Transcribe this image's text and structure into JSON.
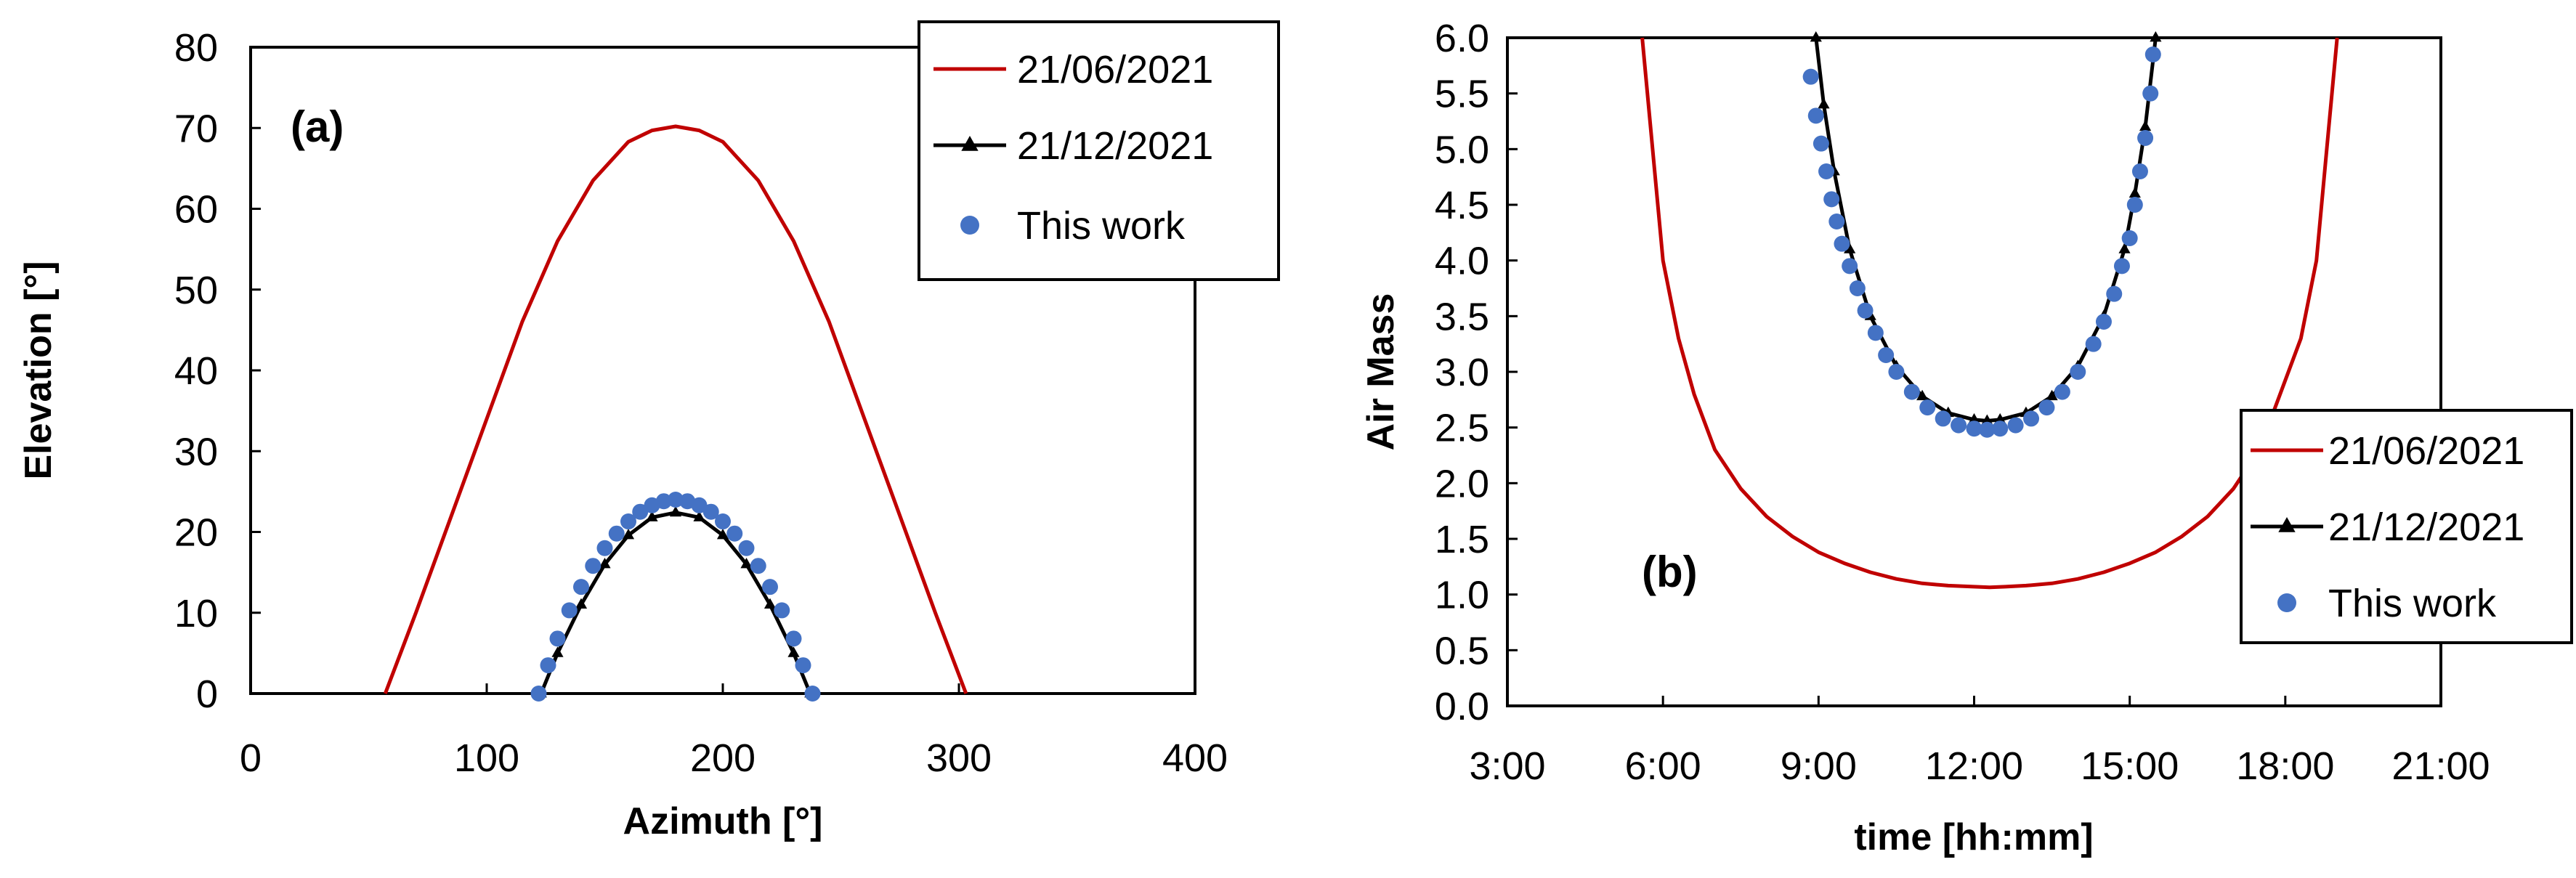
{
  "colors": {
    "june": "#c00000",
    "december": "#000000",
    "this_work": "#4472c4"
  },
  "chart_data": [
    {
      "type": "line",
      "panel_label": "(a)",
      "xlabel": "Azimuth [°]",
      "ylabel": "Elevation [°]",
      "xlim": [
        0,
        400
      ],
      "ylim": [
        0,
        80
      ],
      "x_ticks": [
        "0",
        "100",
        "200",
        "300",
        "400"
      ],
      "y_ticks": [
        "0",
        "10",
        "20",
        "30",
        "40",
        "50",
        "60",
        "70",
        "80"
      ],
      "legend_position": "top-right",
      "series": [
        {
          "name": "21/06/2021",
          "style": "line",
          "color": "#c00000",
          "x": [
            57,
            70,
            85,
            100,
            115,
            130,
            145,
            160,
            170,
            180,
            190,
            200,
            215,
            230,
            245,
            260,
            275,
            290,
            303
          ],
          "y": [
            0,
            10,
            22,
            34,
            46,
            56,
            63.5,
            68.3,
            69.7,
            70.2,
            69.7,
            68.3,
            63.5,
            56,
            46,
            34,
            22,
            10,
            0
          ]
        },
        {
          "name": "21/12/2021",
          "style": "line-triangle",
          "color": "#000000",
          "x": [
            123,
            130,
            140,
            150,
            160,
            170,
            180,
            190,
            200,
            210,
            220,
            230,
            237
          ],
          "y": [
            0,
            5,
            11,
            16,
            19.6,
            21.8,
            22.4,
            21.8,
            19.6,
            16,
            11,
            5,
            0
          ]
        },
        {
          "name": "This work",
          "style": "markers",
          "color": "#4472c4",
          "x": [
            122,
            126,
            130,
            135,
            140,
            145,
            150,
            155,
            160,
            165,
            170,
            175,
            180,
            185,
            190,
            195,
            200,
            205,
            210,
            215,
            220,
            225,
            230,
            234,
            238
          ],
          "y": [
            0,
            3.5,
            6.8,
            10.3,
            13.2,
            15.8,
            18,
            19.8,
            21.3,
            22.5,
            23.3,
            23.8,
            24,
            23.8,
            23.3,
            22.5,
            21.3,
            19.8,
            18,
            15.8,
            13.2,
            10.3,
            6.8,
            3.5,
            0
          ]
        }
      ]
    },
    {
      "type": "line",
      "panel_label": "(b)",
      "xlabel": "time  [hh:mm]",
      "ylabel": "Air Mass",
      "xlim": [
        3,
        21
      ],
      "ylim": [
        0,
        6
      ],
      "x_ticks": [
        "3:00",
        "6:00",
        "9:00",
        "12:00",
        "15:00",
        "18:00",
        "21:00"
      ],
      "y_ticks": [
        "0.0",
        "0.5",
        "1.0",
        "1.5",
        "2.0",
        "2.5",
        "3.0",
        "3.5",
        "4.0",
        "4.5",
        "5.0",
        "5.5",
        "6.0"
      ],
      "legend_position": "right-middle",
      "series": [
        {
          "name": "21/06/2021",
          "style": "line",
          "color": "#c00000",
          "x": [
            5.6,
            5.8,
            6.0,
            6.3,
            6.6,
            7.0,
            7.5,
            8.0,
            8.5,
            9.0,
            9.5,
            10.0,
            10.5,
            11.0,
            11.5,
            12.0,
            12.3,
            12.6,
            13.0,
            13.5,
            14.0,
            14.5,
            15.0,
            15.5,
            16.0,
            16.5,
            17.0,
            17.5,
            17.9,
            18.3,
            18.6,
            18.8,
            19.0
          ],
          "y": [
            6.0,
            5.0,
            4.0,
            3.3,
            2.8,
            2.3,
            1.95,
            1.7,
            1.52,
            1.38,
            1.28,
            1.2,
            1.14,
            1.1,
            1.08,
            1.07,
            1.065,
            1.07,
            1.08,
            1.1,
            1.14,
            1.2,
            1.28,
            1.38,
            1.52,
            1.7,
            1.95,
            2.3,
            2.8,
            3.3,
            4.0,
            5.0,
            6.0
          ]
        },
        {
          "name": "21/12/2021",
          "style": "line-triangle",
          "color": "#000000",
          "x": [
            8.95,
            9.1,
            9.3,
            9.6,
            10.0,
            10.5,
            11.0,
            11.5,
            12.0,
            12.25,
            12.5,
            13.0,
            13.5,
            14.0,
            14.5,
            14.9,
            15.1,
            15.3,
            15.5
          ],
          "y": [
            6.0,
            5.4,
            4.8,
            4.1,
            3.5,
            3.05,
            2.78,
            2.63,
            2.57,
            2.56,
            2.57,
            2.63,
            2.78,
            3.05,
            3.5,
            4.1,
            4.6,
            5.2,
            6.0
          ]
        },
        {
          "name": "This work",
          "style": "markers",
          "color": "#4472c4",
          "x": [
            8.85,
            8.95,
            9.05,
            9.15,
            9.25,
            9.35,
            9.45,
            9.6,
            9.75,
            9.9,
            10.1,
            10.3,
            10.5,
            10.8,
            11.1,
            11.4,
            11.7,
            12.0,
            12.25,
            12.5,
            12.8,
            13.1,
            13.4,
            13.7,
            14.0,
            14.3,
            14.5,
            14.7,
            14.85,
            15.0,
            15.1,
            15.2,
            15.3,
            15.4,
            15.45
          ],
          "y": [
            5.65,
            5.3,
            5.05,
            4.8,
            4.55,
            4.35,
            4.15,
            3.95,
            3.75,
            3.55,
            3.35,
            3.15,
            3.0,
            2.82,
            2.68,
            2.58,
            2.52,
            2.49,
            2.48,
            2.49,
            2.52,
            2.58,
            2.68,
            2.82,
            3.0,
            3.25,
            3.45,
            3.7,
            3.95,
            4.2,
            4.5,
            4.8,
            5.1,
            5.5,
            5.85
          ]
        }
      ]
    }
  ]
}
